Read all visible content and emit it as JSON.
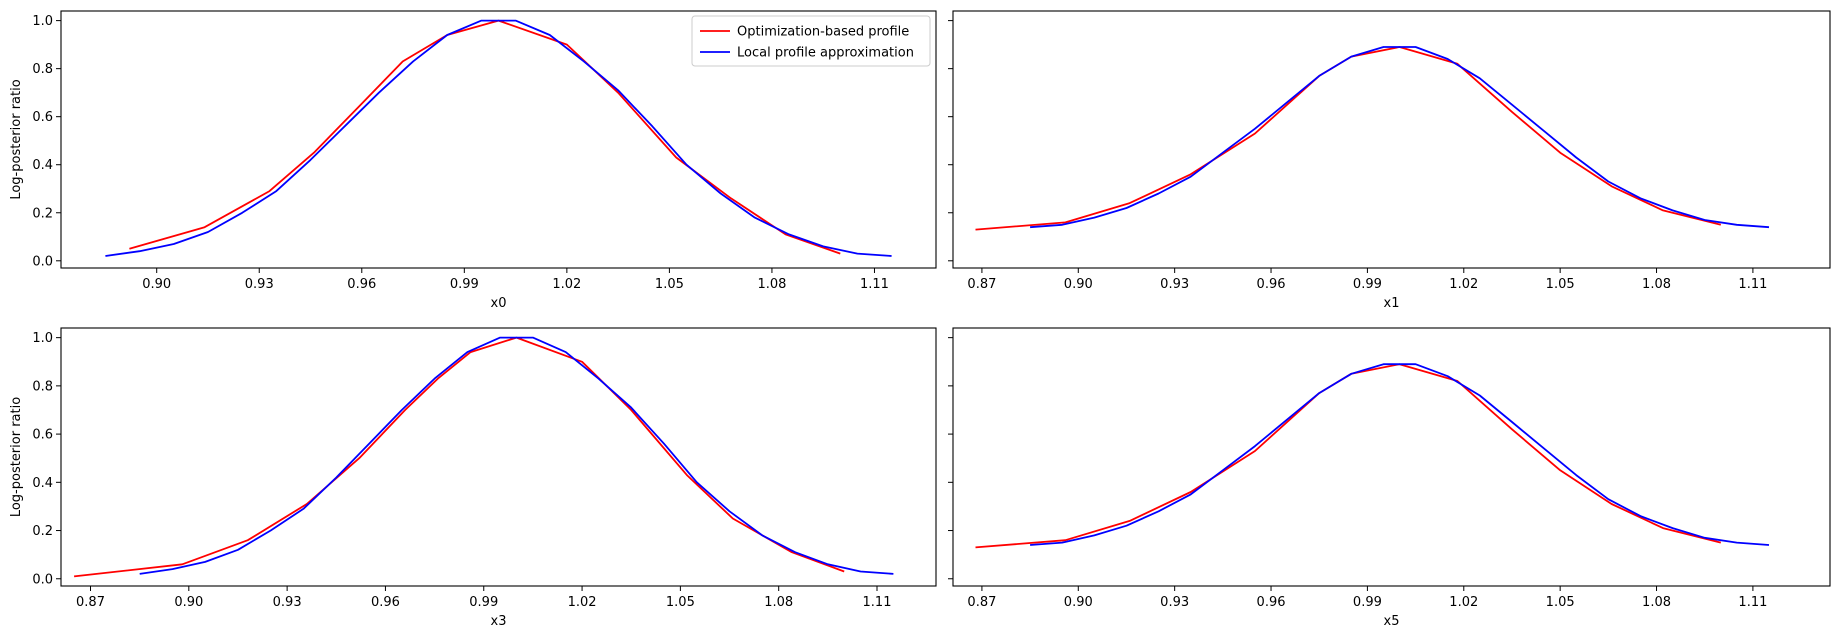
{
  "chart_data": [
    {
      "type": "line",
      "xlabel": "x0",
      "ylabel": "Log-posterior ratio",
      "xlim": [
        0.872,
        1.128
      ],
      "ylim": [
        -0.03,
        1.04
      ],
      "xticks": [
        "0.90",
        "0.93",
        "0.96",
        "0.99",
        "1.02",
        "1.05",
        "1.08",
        "1.11"
      ],
      "yticks": [
        "0.0",
        "0.2",
        "0.4",
        "0.6",
        "0.8",
        "1.0"
      ],
      "show_yticklabels": true,
      "legend_position": "top-right",
      "series": [
        {
          "name": "Optimization-based profile",
          "color": "#ff0000",
          "x": [
            0.892,
            0.914,
            0.933,
            0.946,
            0.959,
            0.972,
            0.985,
            1.0,
            1.02,
            1.035,
            1.052,
            1.068,
            1.084,
            1.1
          ],
          "y": [
            0.05,
            0.14,
            0.29,
            0.45,
            0.64,
            0.83,
            0.94,
            1.0,
            0.9,
            0.7,
            0.43,
            0.26,
            0.11,
            0.03
          ]
        },
        {
          "name": "Local profile approximation",
          "color": "#0000ff",
          "x": [
            0.885,
            0.895,
            0.905,
            0.915,
            0.925,
            0.935,
            0.945,
            0.955,
            0.965,
            0.975,
            0.985,
            0.995,
            1.005,
            1.015,
            1.025,
            1.035,
            1.045,
            1.055,
            1.065,
            1.075,
            1.085,
            1.095,
            1.105,
            1.115
          ],
          "y": [
            0.02,
            0.04,
            0.07,
            0.12,
            0.2,
            0.29,
            0.42,
            0.56,
            0.7,
            0.83,
            0.94,
            1.0,
            1.0,
            0.94,
            0.83,
            0.71,
            0.56,
            0.4,
            0.28,
            0.18,
            0.11,
            0.06,
            0.03,
            0.02
          ]
        }
      ]
    },
    {
      "type": "line",
      "xlabel": "x1",
      "ylabel": "",
      "xlim": [
        0.861,
        1.134
      ],
      "ylim": [
        -0.03,
        1.04
      ],
      "xticks": [
        "0.87",
        "0.90",
        "0.93",
        "0.96",
        "0.99",
        "1.02",
        "1.05",
        "1.08",
        "1.11"
      ],
      "yticks": [
        "0.0",
        "0.2",
        "0.4",
        "0.6",
        "0.8",
        "1.0"
      ],
      "show_yticklabels": false,
      "series": [
        {
          "name": "Optimization-based profile",
          "color": "#ff0000",
          "x": [
            0.868,
            0.896,
            0.916,
            0.935,
            0.955,
            0.975,
            0.985,
            1.0,
            1.018,
            1.035,
            1.05,
            1.066,
            1.082,
            1.1
          ],
          "y": [
            0.13,
            0.16,
            0.24,
            0.36,
            0.53,
            0.77,
            0.85,
            0.89,
            0.82,
            0.62,
            0.45,
            0.31,
            0.21,
            0.15
          ]
        },
        {
          "name": "Local profile approximation",
          "color": "#0000ff",
          "x": [
            0.885,
            0.895,
            0.905,
            0.915,
            0.925,
            0.935,
            0.945,
            0.955,
            0.965,
            0.975,
            0.985,
            0.995,
            1.005,
            1.015,
            1.025,
            1.035,
            1.045,
            1.055,
            1.065,
            1.075,
            1.085,
            1.095,
            1.105,
            1.115
          ],
          "y": [
            0.14,
            0.15,
            0.18,
            0.22,
            0.28,
            0.35,
            0.45,
            0.55,
            0.66,
            0.77,
            0.85,
            0.89,
            0.89,
            0.84,
            0.76,
            0.65,
            0.54,
            0.43,
            0.33,
            0.26,
            0.21,
            0.17,
            0.15,
            0.14
          ]
        }
      ]
    },
    {
      "type": "line",
      "xlabel": "x3",
      "ylabel": "Log-posterior ratio",
      "xlim": [
        0.861,
        1.128
      ],
      "ylim": [
        -0.03,
        1.04
      ],
      "xticks": [
        "0.87",
        "0.90",
        "0.93",
        "0.96",
        "0.99",
        "1.02",
        "1.05",
        "1.08",
        "1.11"
      ],
      "yticks": [
        "0.0",
        "0.2",
        "0.4",
        "0.6",
        "0.8",
        "1.0"
      ],
      "show_yticklabels": true,
      "series": [
        {
          "name": "Optimization-based profile",
          "color": "#ff0000",
          "x": [
            0.865,
            0.898,
            0.918,
            0.936,
            0.952,
            0.966,
            0.976,
            0.986,
            1.0,
            1.02,
            1.035,
            1.052,
            1.066,
            1.084,
            1.1
          ],
          "y": [
            0.01,
            0.06,
            0.16,
            0.31,
            0.5,
            0.7,
            0.83,
            0.94,
            1.0,
            0.9,
            0.7,
            0.43,
            0.25,
            0.11,
            0.03
          ]
        },
        {
          "name": "Local profile approximation",
          "color": "#0000ff",
          "x": [
            0.885,
            0.895,
            0.905,
            0.915,
            0.925,
            0.935,
            0.945,
            0.955,
            0.965,
            0.975,
            0.985,
            0.995,
            1.005,
            1.015,
            1.025,
            1.035,
            1.045,
            1.055,
            1.065,
            1.075,
            1.085,
            1.095,
            1.105,
            1.115
          ],
          "y": [
            0.02,
            0.04,
            0.07,
            0.12,
            0.2,
            0.29,
            0.42,
            0.56,
            0.7,
            0.83,
            0.94,
            1.0,
            1.0,
            0.94,
            0.83,
            0.71,
            0.56,
            0.4,
            0.28,
            0.18,
            0.11,
            0.06,
            0.03,
            0.02
          ]
        }
      ]
    },
    {
      "type": "line",
      "xlabel": "x5",
      "ylabel": "",
      "xlim": [
        0.861,
        1.134
      ],
      "ylim": [
        -0.03,
        1.04
      ],
      "xticks": [
        "0.87",
        "0.90",
        "0.93",
        "0.96",
        "0.99",
        "1.02",
        "1.05",
        "1.08",
        "1.11"
      ],
      "yticks": [
        "0.0",
        "0.2",
        "0.4",
        "0.6",
        "0.8",
        "1.0"
      ],
      "show_yticklabels": false,
      "series": [
        {
          "name": "Optimization-based profile",
          "color": "#ff0000",
          "x": [
            0.868,
            0.896,
            0.916,
            0.935,
            0.955,
            0.975,
            0.985,
            1.0,
            1.018,
            1.035,
            1.05,
            1.066,
            1.082,
            1.1
          ],
          "y": [
            0.13,
            0.16,
            0.24,
            0.36,
            0.53,
            0.77,
            0.85,
            0.89,
            0.82,
            0.62,
            0.45,
            0.31,
            0.21,
            0.15
          ]
        },
        {
          "name": "Local profile approximation",
          "color": "#0000ff",
          "x": [
            0.885,
            0.895,
            0.905,
            0.915,
            0.925,
            0.935,
            0.945,
            0.955,
            0.965,
            0.975,
            0.985,
            0.995,
            1.005,
            1.015,
            1.025,
            1.035,
            1.045,
            1.055,
            1.065,
            1.075,
            1.085,
            1.095,
            1.105,
            1.115
          ],
          "y": [
            0.14,
            0.15,
            0.18,
            0.22,
            0.28,
            0.35,
            0.45,
            0.55,
            0.66,
            0.77,
            0.85,
            0.89,
            0.89,
            0.84,
            0.76,
            0.65,
            0.54,
            0.43,
            0.33,
            0.26,
            0.21,
            0.17,
            0.15,
            0.14
          ]
        }
      ]
    }
  ]
}
